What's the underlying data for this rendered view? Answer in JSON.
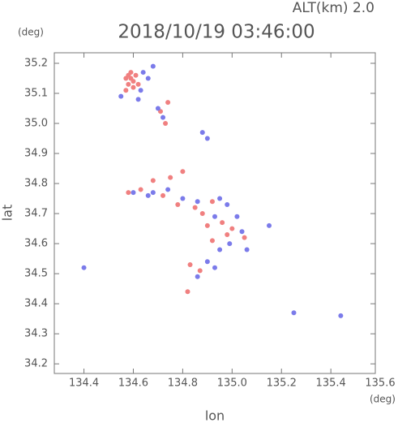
{
  "chart_data": {
    "type": "scatter",
    "title": "2018/10/19 03:46:00",
    "subtitle": "ALT(km) 2.0",
    "x_label": "lon",
    "y_label": "lat",
    "x_unit": "(deg)",
    "y_unit": "(deg)",
    "xlim": [
      134.28,
      135.58
    ],
    "ylim": [
      34.168,
      35.235
    ],
    "xticks": [
      134.4,
      134.6,
      134.8,
      {
        "value": 135,
        "label": "135.0"
      },
      135.2,
      135.4,
      135.6
    ],
    "yticks": [
      34.2,
      34.3,
      34.4,
      34.5,
      34.6,
      34.7,
      34.8,
      34.9,
      {
        "value": 35,
        "label": "35.0"
      },
      35.1,
      35.2
    ],
    "series": [
      {
        "color": "#f08080",
        "x": [
          134.57,
          134.58,
          134.59,
          134.6,
          134.58,
          134.61,
          134.6,
          134.57,
          134.62,
          134.59,
          134.74,
          134.71,
          134.73,
          134.8,
          134.75,
          134.58,
          134.63,
          134.72,
          134.78,
          134.85,
          134.88,
          134.92,
          134.96,
          135.0,
          134.98,
          134.92,
          135.05,
          134.83,
          134.87,
          134.82,
          134.9,
          134.68
        ],
        "y": [
          35.15,
          35.16,
          35.15,
          35.14,
          35.13,
          35.16,
          35.12,
          35.11,
          35.13,
          35.17,
          35.07,
          35.04,
          35.0,
          34.84,
          34.82,
          34.77,
          34.78,
          34.76,
          34.73,
          34.72,
          34.7,
          34.74,
          34.67,
          34.65,
          34.63,
          34.61,
          34.62,
          34.53,
          34.51,
          34.44,
          34.66,
          34.81
        ]
      },
      {
        "color": "#7b7bea",
        "x": [
          134.55,
          134.63,
          134.64,
          134.66,
          134.68,
          134.62,
          134.7,
          134.72,
          134.68,
          134.6,
          134.66,
          134.74,
          134.8,
          134.86,
          134.95,
          134.98,
          134.93,
          135.02,
          135.04,
          134.99,
          134.95,
          135.06,
          134.9,
          134.93,
          134.86,
          134.4,
          135.25,
          135.44,
          135.15,
          134.9,
          134.88
        ],
        "y": [
          35.09,
          35.11,
          35.17,
          35.15,
          35.19,
          35.08,
          35.05,
          35.02,
          34.77,
          34.77,
          34.76,
          34.78,
          34.75,
          34.74,
          34.75,
          34.73,
          34.69,
          34.69,
          34.64,
          34.6,
          34.58,
          34.58,
          34.54,
          34.52,
          34.49,
          34.52,
          34.37,
          34.36,
          34.66,
          34.95,
          34.97
        ]
      }
    ]
  }
}
